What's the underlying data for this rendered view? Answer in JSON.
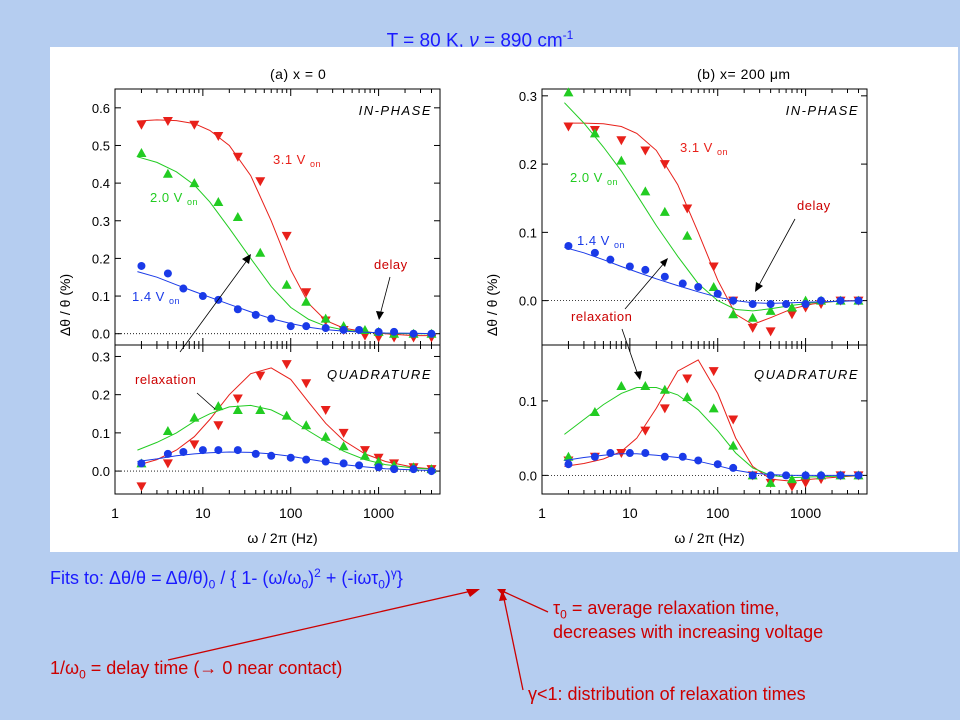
{
  "header": {
    "title_main": "T = 80 K, ",
    "title_nu": "ν",
    "title_rest": " = 890 cm",
    "title_sup": "-1"
  },
  "fit": {
    "lead": "Fits to: ",
    "formula": "Δθ/θ = Δθ/θ)",
    "sub0": "0",
    "mid": " / { 1- (ω/ω",
    "sub1": "0",
    "close1": ")",
    "sup2": "2",
    "plus": " + (-iωτ",
    "sub2": "0",
    "close2": ")",
    "supg": "γ",
    "end": "}"
  },
  "notes": {
    "tau_sym": "τ",
    "tau_sub": "0",
    "tau_line1": " = average relaxation time,",
    "tau_line2": "decreases with increasing voltage",
    "omega_pre": "1/ω",
    "omega_sub": "0",
    "omega_rest": " = delay time (→ 0 near contact)",
    "gamma_text": "γ<1: distribution of relaxation times"
  },
  "colors": {
    "v31": "#e8201a",
    "v20": "#22cc22",
    "v14": "#1a3ae8",
    "text_red": "#cc0000",
    "text_blue": "#1a1aff"
  },
  "chart_data": [
    {
      "type": "scatter",
      "panel": "a-in-phase",
      "xscale": "log",
      "xlim": [
        1,
        5000
      ],
      "ylim": [
        -0.03,
        0.65
      ],
      "yticks": [
        0.0,
        0.1,
        0.2,
        0.3,
        0.4,
        0.5,
        0.6
      ],
      "ytick_labels": [
        "0.0",
        "0.1",
        "0.2",
        "0.3",
        "0.4",
        "0.5",
        "0.6"
      ],
      "panel_label": "(a)   x = 0",
      "phase_label": "IN-PHASE",
      "ylabel": "Δθ / θ  (%)",
      "series": [
        {
          "name": "3.1 V",
          "sub": "on",
          "color": "#e8201a",
          "marker": "triangle-down",
          "x": [
            2,
            4,
            8,
            15,
            25,
            45,
            90,
            150,
            250,
            400,
            700,
            1000,
            1500,
            2500,
            4000
          ],
          "y": [
            0.555,
            0.565,
            0.555,
            0.525,
            0.47,
            0.405,
            0.26,
            0.11,
            0.035,
            0.01,
            -0.005,
            -0.01,
            -0.01,
            -0.01,
            -0.01
          ],
          "fit_x": [
            1.8,
            3,
            5,
            8,
            12,
            20,
            35,
            60,
            100,
            160,
            250,
            400,
            700,
            1200,
            2500,
            4500
          ],
          "fit_y": [
            0.565,
            0.568,
            0.566,
            0.558,
            0.54,
            0.5,
            0.42,
            0.3,
            0.17,
            0.08,
            0.035,
            0.015,
            0.005,
            0.0,
            -0.005,
            -0.005
          ]
        },
        {
          "name": "2.0 V",
          "sub": "on",
          "color": "#22cc22",
          "marker": "triangle-up",
          "x": [
            2,
            4,
            8,
            15,
            25,
            45,
            90,
            150,
            250,
            400,
            700,
            1000,
            1500,
            2500,
            4000
          ],
          "y": [
            0.48,
            0.425,
            0.4,
            0.35,
            0.31,
            0.215,
            0.13,
            0.085,
            0.04,
            0.02,
            0.01,
            0.005,
            0.0,
            0.0,
            0.0
          ],
          "fit_x": [
            1.8,
            3,
            5,
            8,
            12,
            20,
            35,
            60,
            100,
            160,
            250,
            400,
            700,
            1200,
            2500,
            4500
          ],
          "fit_y": [
            0.47,
            0.455,
            0.43,
            0.395,
            0.35,
            0.28,
            0.2,
            0.125,
            0.07,
            0.038,
            0.02,
            0.01,
            0.004,
            0.001,
            0.0,
            0.0
          ]
        },
        {
          "name": "1.4 V",
          "sub": "on",
          "color": "#1a3ae8",
          "marker": "circle",
          "x": [
            2,
            4,
            6,
            10,
            15,
            25,
            40,
            60,
            100,
            150,
            250,
            400,
            600,
            1000,
            1500,
            2500,
            4000
          ],
          "y": [
            0.18,
            0.16,
            0.12,
            0.1,
            0.09,
            0.065,
            0.05,
            0.04,
            0.02,
            0.02,
            0.015,
            0.01,
            0.01,
            0.005,
            0.005,
            0.0,
            0.0
          ],
          "fit_x": [
            1.8,
            3,
            5,
            8,
            12,
            20,
            35,
            60,
            100,
            160,
            250,
            400,
            700,
            1200,
            2500,
            4500
          ],
          "fit_y": [
            0.165,
            0.15,
            0.13,
            0.112,
            0.097,
            0.078,
            0.058,
            0.04,
            0.027,
            0.017,
            0.011,
            0.007,
            0.004,
            0.002,
            0.001,
            0.0
          ]
        }
      ],
      "annotations": [
        "delay"
      ]
    },
    {
      "type": "scatter",
      "panel": "a-quadrature",
      "xscale": "log",
      "xlim": [
        1,
        5000
      ],
      "ylim": [
        -0.06,
        0.33
      ],
      "yticks": [
        0.0,
        0.1,
        0.2,
        0.3
      ],
      "ytick_labels": [
        "0.0",
        "0.1",
        "0.2",
        "0.3"
      ],
      "xticks": [
        1,
        10,
        100,
        1000
      ],
      "xtick_labels": [
        "1",
        "10",
        "100",
        "1000"
      ],
      "phase_label": "QUADRATURE",
      "xlabel": "ω / 2π    (Hz)",
      "series": [
        {
          "name": "3.1 V",
          "color": "#e8201a",
          "marker": "triangle-down",
          "x": [
            2,
            4,
            8,
            15,
            25,
            45,
            90,
            150,
            250,
            400,
            700,
            1000,
            1500,
            2500,
            4000
          ],
          "y": [
            -0.04,
            0.02,
            0.07,
            0.12,
            0.19,
            0.25,
            0.28,
            0.23,
            0.16,
            0.1,
            0.055,
            0.035,
            0.02,
            0.01,
            0.005
          ],
          "fit_x": [
            1.8,
            3,
            5,
            8,
            12,
            20,
            35,
            60,
            100,
            160,
            250,
            400,
            700,
            1200,
            2500,
            4500
          ],
          "fit_y": [
            0.015,
            0.03,
            0.055,
            0.09,
            0.135,
            0.2,
            0.255,
            0.27,
            0.24,
            0.18,
            0.125,
            0.08,
            0.045,
            0.025,
            0.01,
            0.005
          ]
        },
        {
          "name": "2.0 V",
          "color": "#22cc22",
          "marker": "triangle-up",
          "x": [
            2,
            4,
            8,
            15,
            25,
            45,
            90,
            150,
            250,
            400,
            700,
            1000,
            1500,
            2500,
            4000
          ],
          "y": [
            0.02,
            0.105,
            0.14,
            0.17,
            0.16,
            0.16,
            0.145,
            0.12,
            0.09,
            0.065,
            0.04,
            0.025,
            0.015,
            0.01,
            0.005
          ],
          "fit_x": [
            1.8,
            3,
            5,
            8,
            12,
            20,
            35,
            60,
            100,
            160,
            250,
            400,
            700,
            1200,
            2500,
            4500
          ],
          "fit_y": [
            0.055,
            0.075,
            0.1,
            0.13,
            0.15,
            0.168,
            0.172,
            0.16,
            0.135,
            0.105,
            0.078,
            0.052,
            0.03,
            0.017,
            0.008,
            0.004
          ]
        },
        {
          "name": "1.4 V",
          "color": "#1a3ae8",
          "marker": "circle",
          "x": [
            2,
            4,
            6,
            10,
            15,
            25,
            40,
            60,
            100,
            150,
            250,
            400,
            600,
            1000,
            1500,
            2500,
            4000
          ],
          "y": [
            0.02,
            0.045,
            0.05,
            0.055,
            0.055,
            0.055,
            0.045,
            0.04,
            0.035,
            0.03,
            0.025,
            0.02,
            0.015,
            0.01,
            0.005,
            0.005,
            0.0
          ],
          "fit_x": [
            1.8,
            3,
            5,
            8,
            12,
            20,
            35,
            60,
            100,
            160,
            250,
            400,
            700,
            1200,
            2500,
            4500
          ],
          "fit_y": [
            0.025,
            0.032,
            0.04,
            0.045,
            0.048,
            0.05,
            0.049,
            0.045,
            0.039,
            0.031,
            0.024,
            0.017,
            0.011,
            0.006,
            0.003,
            0.001
          ]
        }
      ],
      "annotations": [
        "relaxation"
      ]
    },
    {
      "type": "scatter",
      "panel": "b-in-phase",
      "xscale": "log",
      "xlim": [
        1,
        5000
      ],
      "ylim": [
        -0.065,
        0.31
      ],
      "yticks": [
        0.0,
        0.1,
        0.2,
        0.3
      ],
      "ytick_labels": [
        "0.0",
        "0.1",
        "0.2",
        "0.3"
      ],
      "panel_label": "(b)   x= 200 μm",
      "phase_label": "IN-PHASE",
      "ylabel": "Δθ / θ  (%)",
      "series": [
        {
          "name": "3.1 V",
          "sub": "on",
          "color": "#e8201a",
          "marker": "triangle-down",
          "x": [
            2,
            4,
            8,
            15,
            25,
            45,
            90,
            150,
            250,
            400,
            700,
            1000,
            1500,
            2500,
            4000
          ],
          "y": [
            0.255,
            0.25,
            0.235,
            0.22,
            0.2,
            0.135,
            0.05,
            0.0,
            -0.04,
            -0.045,
            -0.02,
            -0.01,
            -0.005,
            0.0,
            0.0
          ],
          "fit_x": [
            1.8,
            3,
            5,
            8,
            12,
            20,
            35,
            60,
            100,
            160,
            250,
            400,
            700,
            1200,
            2500,
            4500
          ],
          "fit_y": [
            0.26,
            0.26,
            0.259,
            0.255,
            0.245,
            0.22,
            0.17,
            0.1,
            0.03,
            -0.02,
            -0.035,
            -0.025,
            -0.012,
            -0.005,
            0.0,
            0.0
          ]
        },
        {
          "name": "2.0 V",
          "sub": "on",
          "color": "#22cc22",
          "marker": "triangle-up",
          "x": [
            2,
            4,
            8,
            15,
            25,
            45,
            90,
            150,
            250,
            400,
            700,
            1000,
            1500,
            2500,
            4000
          ],
          "y": [
            0.305,
            0.245,
            0.205,
            0.16,
            0.13,
            0.095,
            0.02,
            -0.02,
            -0.025,
            -0.015,
            -0.01,
            0.0,
            0.0,
            0.0,
            0.0
          ],
          "fit_x": [
            1.8,
            3,
            5,
            8,
            12,
            20,
            35,
            60,
            100,
            160,
            250,
            400,
            700,
            1200,
            2500,
            4500
          ],
          "fit_y": [
            0.29,
            0.26,
            0.225,
            0.19,
            0.155,
            0.11,
            0.065,
            0.025,
            0.0,
            -0.013,
            -0.015,
            -0.012,
            -0.007,
            -0.003,
            -0.001,
            0.0
          ]
        },
        {
          "name": "1.4 V",
          "sub": "on",
          "color": "#1a3ae8",
          "marker": "circle",
          "x": [
            2,
            4,
            6,
            10,
            15,
            25,
            40,
            60,
            100,
            150,
            250,
            400,
            600,
            1000,
            1500,
            2500,
            4000
          ],
          "y": [
            0.08,
            0.07,
            0.06,
            0.05,
            0.045,
            0.035,
            0.025,
            0.02,
            0.01,
            0.0,
            -0.005,
            -0.005,
            -0.005,
            -0.005,
            0.0,
            0.0,
            0.0
          ],
          "fit_x": [
            1.8,
            3,
            5,
            8,
            12,
            20,
            35,
            60,
            100,
            160,
            250,
            400,
            700,
            1200,
            2500,
            4500
          ],
          "fit_y": [
            0.078,
            0.07,
            0.06,
            0.05,
            0.042,
            0.032,
            0.022,
            0.013,
            0.005,
            0.0,
            -0.003,
            -0.004,
            -0.003,
            -0.002,
            -0.001,
            0.0
          ]
        }
      ],
      "annotations": [
        "delay",
        "relaxation"
      ]
    },
    {
      "type": "scatter",
      "panel": "b-quadrature",
      "xscale": "log",
      "xlim": [
        1,
        5000
      ],
      "ylim": [
        -0.025,
        0.175
      ],
      "yticks": [
        0.0,
        0.1
      ],
      "ytick_labels": [
        "0.0",
        "0.1"
      ],
      "xticks": [
        1,
        10,
        100,
        1000
      ],
      "xtick_labels": [
        "1",
        "10",
        "100",
        "1000"
      ],
      "phase_label": "QUADRATURE",
      "xlabel": "ω / 2π    (Hz)",
      "series": [
        {
          "name": "3.1 V",
          "color": "#e8201a",
          "marker": "triangle-down",
          "x": [
            2,
            4,
            8,
            15,
            25,
            45,
            90,
            150,
            250,
            400,
            700,
            1000,
            1500,
            2500,
            4000
          ],
          "y": [
            0.02,
            0.025,
            0.03,
            0.06,
            0.09,
            0.13,
            0.14,
            0.075,
            0.0,
            -0.01,
            -0.015,
            -0.01,
            -0.005,
            0.0,
            0.0
          ],
          "fit_x": [
            1.8,
            3,
            5,
            8,
            12,
            20,
            35,
            60,
            100,
            160,
            250,
            400,
            700,
            1200,
            2500,
            4500
          ],
          "fit_y": [
            0.012,
            0.016,
            0.022,
            0.032,
            0.05,
            0.09,
            0.14,
            0.155,
            0.11,
            0.05,
            0.012,
            -0.005,
            -0.008,
            -0.005,
            -0.002,
            0.0
          ]
        },
        {
          "name": "2.0 V",
          "color": "#22cc22",
          "marker": "triangle-up",
          "x": [
            2,
            4,
            8,
            15,
            25,
            45,
            90,
            150,
            250,
            400,
            700,
            1000,
            1500,
            2500,
            4000
          ],
          "y": [
            0.025,
            0.085,
            0.12,
            0.12,
            0.115,
            0.105,
            0.09,
            0.04,
            0.0,
            -0.01,
            -0.005,
            0.0,
            0.0,
            0.0,
            0.0
          ],
          "fit_x": [
            1.8,
            3,
            5,
            8,
            12,
            20,
            35,
            60,
            100,
            160,
            250,
            400,
            700,
            1200,
            2500,
            4500
          ],
          "fit_y": [
            0.055,
            0.075,
            0.095,
            0.11,
            0.118,
            0.118,
            0.108,
            0.088,
            0.06,
            0.03,
            0.01,
            0.0,
            -0.003,
            -0.002,
            -0.001,
            0.0
          ]
        },
        {
          "name": "1.4 V",
          "color": "#1a3ae8",
          "marker": "circle",
          "x": [
            2,
            4,
            6,
            10,
            15,
            25,
            40,
            60,
            100,
            150,
            250,
            400,
            600,
            1000,
            1500,
            2500,
            4000
          ],
          "y": [
            0.015,
            0.025,
            0.03,
            0.03,
            0.03,
            0.025,
            0.025,
            0.02,
            0.015,
            0.01,
            0.0,
            0.0,
            0.0,
            0.0,
            0.0,
            0.0,
            0.0
          ],
          "fit_x": [
            1.8,
            3,
            5,
            8,
            12,
            20,
            35,
            60,
            100,
            160,
            250,
            400,
            700,
            1200,
            2500,
            4500
          ],
          "fit_y": [
            0.02,
            0.024,
            0.027,
            0.029,
            0.029,
            0.027,
            0.024,
            0.019,
            0.013,
            0.007,
            0.003,
            0.001,
            0.0,
            0.0,
            0.0,
            0.0
          ]
        }
      ]
    }
  ]
}
